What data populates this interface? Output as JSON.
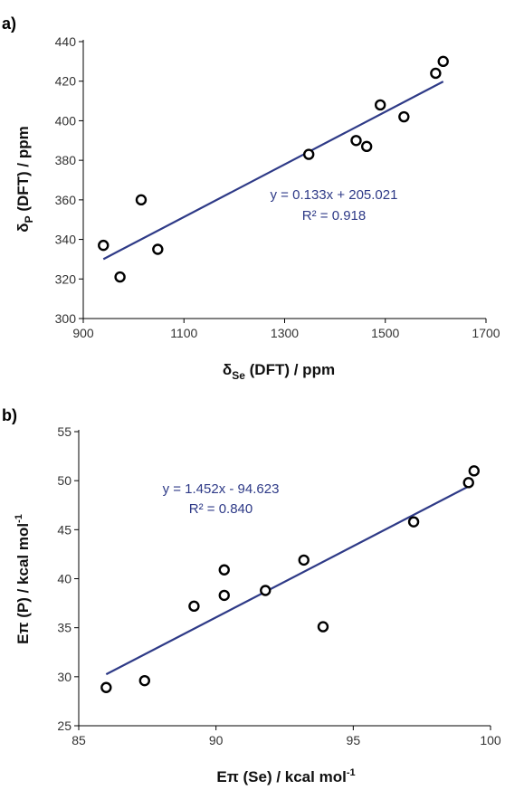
{
  "chart_data": [
    {
      "type": "scatter",
      "panel_label": "a)",
      "title": "",
      "xlabel": "δSe (DFT) / ppm",
      "ylabel": "δP (DFT) / ppm",
      "xlabel_main": "δ",
      "xlabel_sub": "Se",
      "xlabel_rest": " (DFT) / ppm",
      "ylabel_main": "δ",
      "ylabel_sub": "P",
      "ylabel_rest": " (DFT) / ppm",
      "xlim": [
        900,
        1700
      ],
      "ylim": [
        300,
        440
      ],
      "xticks": [
        900,
        1100,
        1300,
        1500,
        1700
      ],
      "yticks": [
        300,
        320,
        340,
        360,
        380,
        400,
        420,
        440
      ],
      "grid": false,
      "series": [
        {
          "x": [
            940,
            973,
            1015,
            1048,
            1348,
            1442,
            1463,
            1490,
            1537,
            1600,
            1615
          ],
          "y": [
            337,
            321,
            360,
            335,
            383,
            390,
            387,
            408,
            402,
            424,
            430
          ]
        }
      ],
      "trendline": {
        "slope": 0.133,
        "intercept": 205.021,
        "x_range": [
          940,
          1615
        ]
      },
      "equation": "y = 0.133x + 205.021",
      "r_squared": "R² = 0.918",
      "colors": {
        "points": "#000000",
        "trendline": "#2e3a87",
        "equation": "#2e3a87"
      }
    },
    {
      "type": "scatter",
      "panel_label": "b)",
      "title": "",
      "xlabel": "Eπ (Se) / kcal mol-1",
      "ylabel": "Eπ (P) / kcal mol-1",
      "xlabel_main": "Eπ (Se) / kcal mol",
      "xlabel_sup": "-1",
      "ylabel_main": "Eπ (P) / kcal mol",
      "ylabel_sup": "-1",
      "xlim": [
        85,
        100
      ],
      "ylim": [
        25,
        55
      ],
      "xticks": [
        85,
        90,
        95,
        100
      ],
      "yticks": [
        25,
        30,
        35,
        40,
        45,
        50,
        55
      ],
      "grid": false,
      "series": [
        {
          "x": [
            86.0,
            87.4,
            89.2,
            90.3,
            90.3,
            91.8,
            93.2,
            93.9,
            97.2,
            99.2,
            99.4
          ],
          "y": [
            28.9,
            29.6,
            37.2,
            40.9,
            38.3,
            38.8,
            41.9,
            35.1,
            45.8,
            49.8,
            51.0
          ]
        }
      ],
      "trendline": {
        "slope": 1.452,
        "intercept": -94.623,
        "x_range": [
          86.0,
          99.2
        ]
      },
      "equation": "y = 1.452x - 94.623",
      "r_squared": "R² = 0.840",
      "colors": {
        "points": "#000000",
        "trendline": "#2e3a87",
        "equation": "#2e3a87"
      }
    }
  ]
}
